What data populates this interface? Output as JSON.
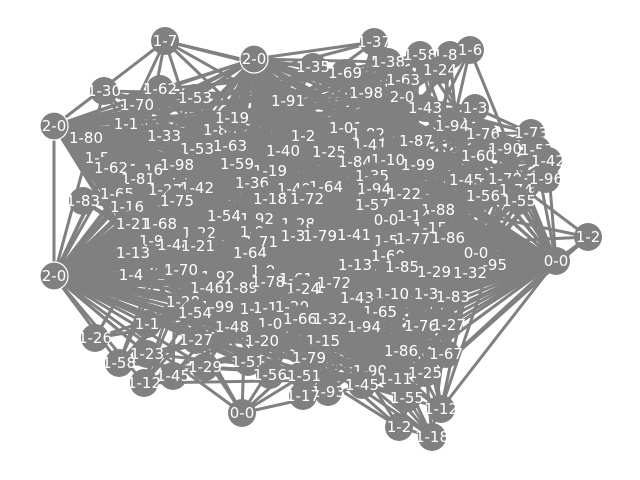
{
  "graph": {
    "node_color": "#808080",
    "edge_color": "#808080",
    "label_color": "#ffffff",
    "background": "#ffffff",
    "hubs": [
      "2-0 (top)",
      "2-0 (left)",
      "2-0 (upper-left)"
    ],
    "nodes": [
      "1-7",
      "2-0",
      "1-37",
      "1-58",
      "1-88",
      "1-6",
      "1-30",
      "1-62",
      "1-35",
      "1-69",
      "1-38",
      "1-63",
      "1-24",
      "2-0",
      "1-70",
      "1-53",
      "1-91",
      "1-98",
      "2-0",
      "1-43",
      "1-3",
      "1-80",
      "1-1",
      "1-33",
      "1-80",
      "1-19",
      "1-2",
      "1-01",
      "1-82",
      "1-94",
      "1-76",
      "1-73",
      "1-57",
      "1-5",
      "1-53",
      "1-63",
      "1-40",
      "1-25",
      "1-41",
      "1-87",
      "1-90",
      "1-62",
      "1-16",
      "1-98",
      "1-59",
      "1-19",
      "1-84",
      "1-10",
      "1-99",
      "1-60",
      "1-42",
      "1-96",
      "1-37",
      "1-36",
      "1-49",
      "1-64",
      "1-35",
      "1-94",
      "1-45",
      "1-78",
      "1-74",
      "1-83",
      "1-23",
      "1-42",
      "1-18",
      "1-72",
      "1-81",
      "1-22",
      "1-57",
      "1-56",
      "1-65",
      "1-55",
      "1-16",
      "1-75",
      "1-54",
      "1-92",
      "1-28",
      "0-0",
      "1-88",
      "1-14",
      "1-68",
      "1-22",
      "1-9",
      "1-3",
      "1-79",
      "1-41",
      "1-21",
      "1-97",
      "1-44",
      "1-21",
      "1-71",
      "1-64",
      "1-13",
      "1-57",
      "1-15",
      "0-0",
      "1-60",
      "1-77",
      "1-86",
      "1-95",
      "1-2",
      "0-0",
      "1-32",
      "2-0",
      "1-4",
      "1-70",
      "1-92",
      "1-9",
      "1-61",
      "1-13",
      "1-47",
      "1-85",
      "1-29",
      "1-46",
      "1-89",
      "1-78",
      "1-24",
      "1-72",
      "1-10",
      "1-3",
      "1-83",
      "1-28",
      "1-99",
      "1-8",
      "1-19",
      "1-20",
      "1-43",
      "1-65",
      "1-54",
      "1-1",
      "1-48",
      "1-0",
      "1-66",
      "1-32",
      "1-94",
      "1-76",
      "1-27",
      "1-26",
      "1-27",
      "1-20",
      "1-15",
      "1-86",
      "1-67",
      "1-23",
      "1-58",
      "1-51",
      "1-56",
      "1-79",
      "1-90",
      "1-25",
      "1-45",
      "1-29",
      "1-12",
      "1-51",
      "1-45",
      "1-11",
      "1-93",
      "1-55",
      "0-0",
      "1-17",
      "1-12",
      "1-2",
      "1-18"
    ]
  }
}
